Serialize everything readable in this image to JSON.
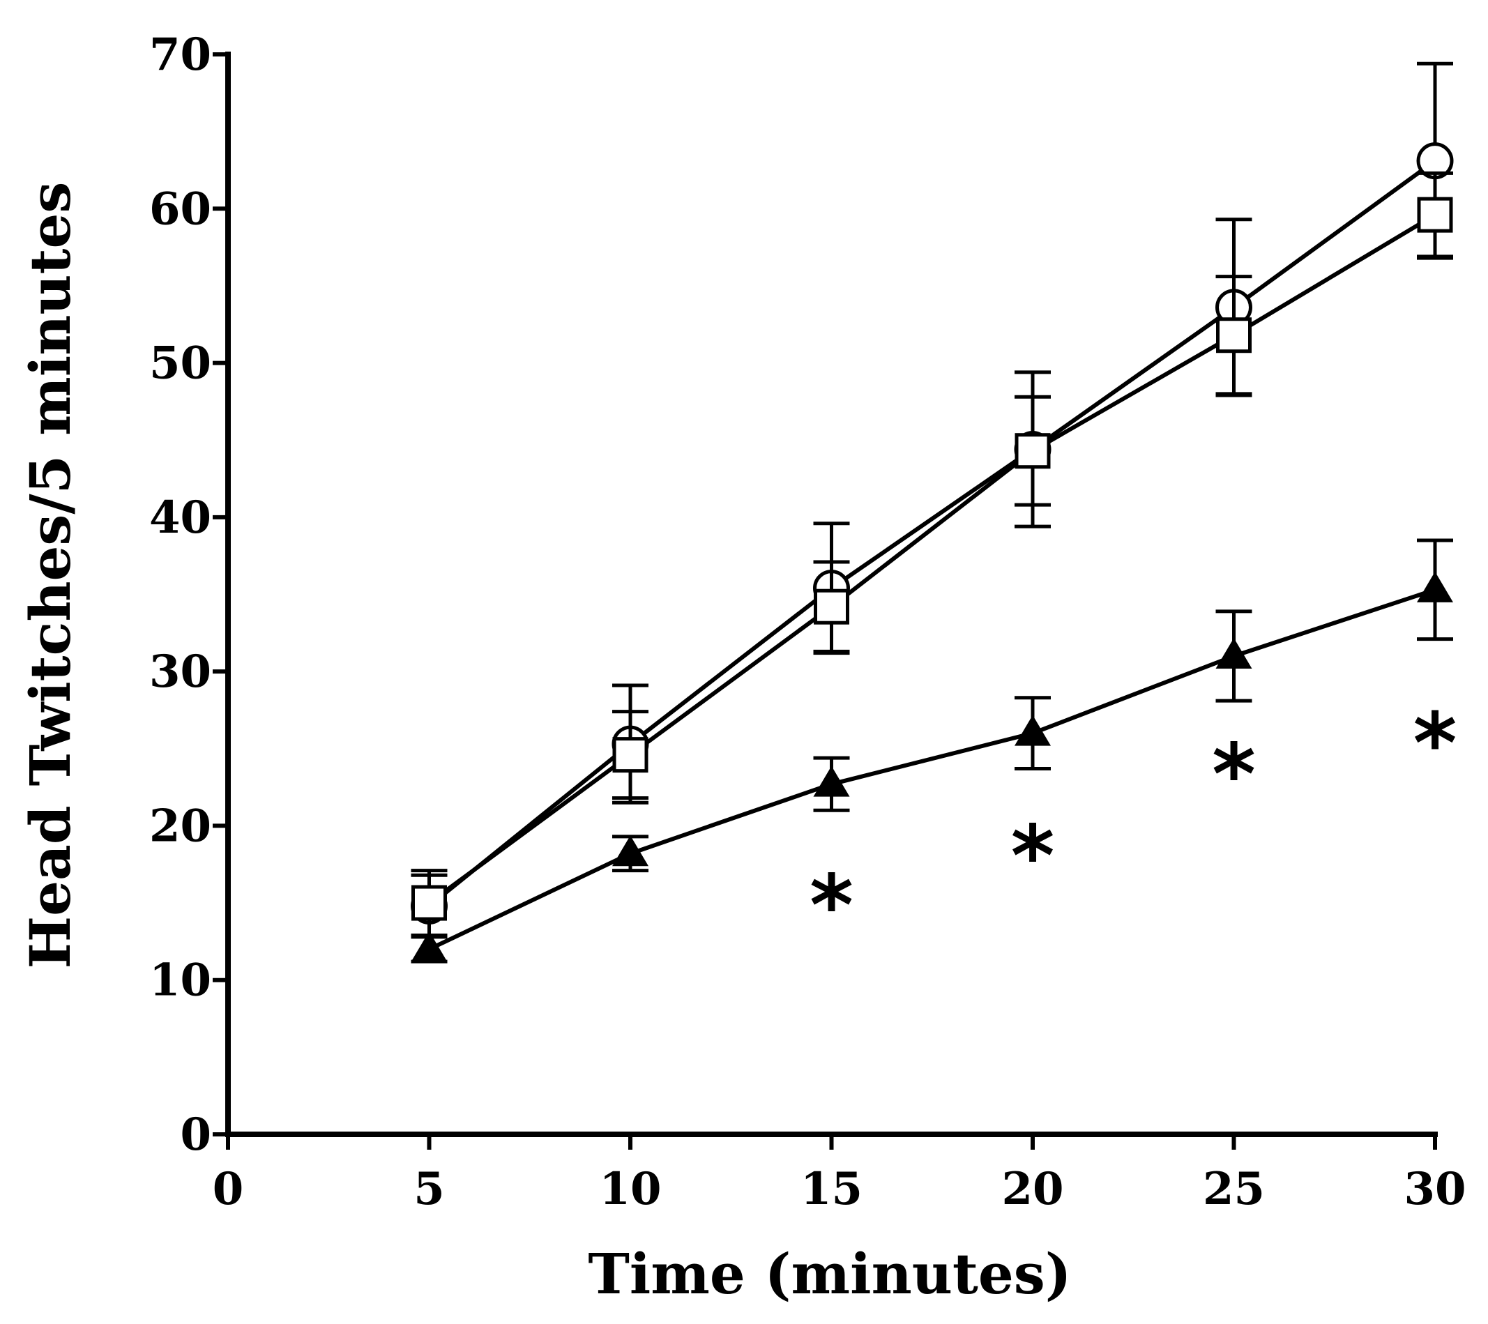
{
  "chart_data": {
    "type": "line",
    "title": "",
    "xlabel": "Time (minutes)",
    "ylabel": "Head Twitches/5 minutes",
    "xlim": [
      0,
      30
    ],
    "ylim": [
      0,
      70
    ],
    "x_ticks": [
      "0",
      "5",
      "10",
      "15",
      "20",
      "25",
      "30"
    ],
    "y_ticks": [
      "0",
      "10",
      "20",
      "30",
      "40",
      "50",
      "60",
      "70"
    ],
    "grid": false,
    "legend": "none",
    "x": [
      5,
      10,
      15,
      20,
      25,
      30
    ],
    "series": [
      {
        "name": "circle (open)",
        "marker": "circle",
        "values": [
          14.8,
          25.3,
          35.4,
          44.4,
          53.6,
          63.1
        ],
        "err": [
          2.0,
          3.8,
          4.2,
          5.0,
          5.7,
          6.3
        ]
      },
      {
        "name": "square (open)",
        "marker": "square",
        "values": [
          15.0,
          24.6,
          34.2,
          44.3,
          51.8,
          59.6
        ],
        "err": [
          2.1,
          2.8,
          2.9,
          3.5,
          3.8,
          2.7
        ]
      },
      {
        "name": "triangle (filled)",
        "marker": "triangle",
        "values": [
          12.0,
          18.2,
          22.7,
          26.0,
          31.0,
          35.3
        ],
        "err": [
          0.8,
          1.1,
          1.7,
          2.3,
          2.9,
          3.2
        ]
      }
    ],
    "annotations": [
      {
        "text": "*",
        "x": 15,
        "y": 15.3
      },
      {
        "text": "*",
        "x": 20,
        "y": 18.5
      },
      {
        "text": "*",
        "x": 25,
        "y": 23.8
      },
      {
        "text": "*",
        "x": 30,
        "y": 25.8
      }
    ]
  }
}
